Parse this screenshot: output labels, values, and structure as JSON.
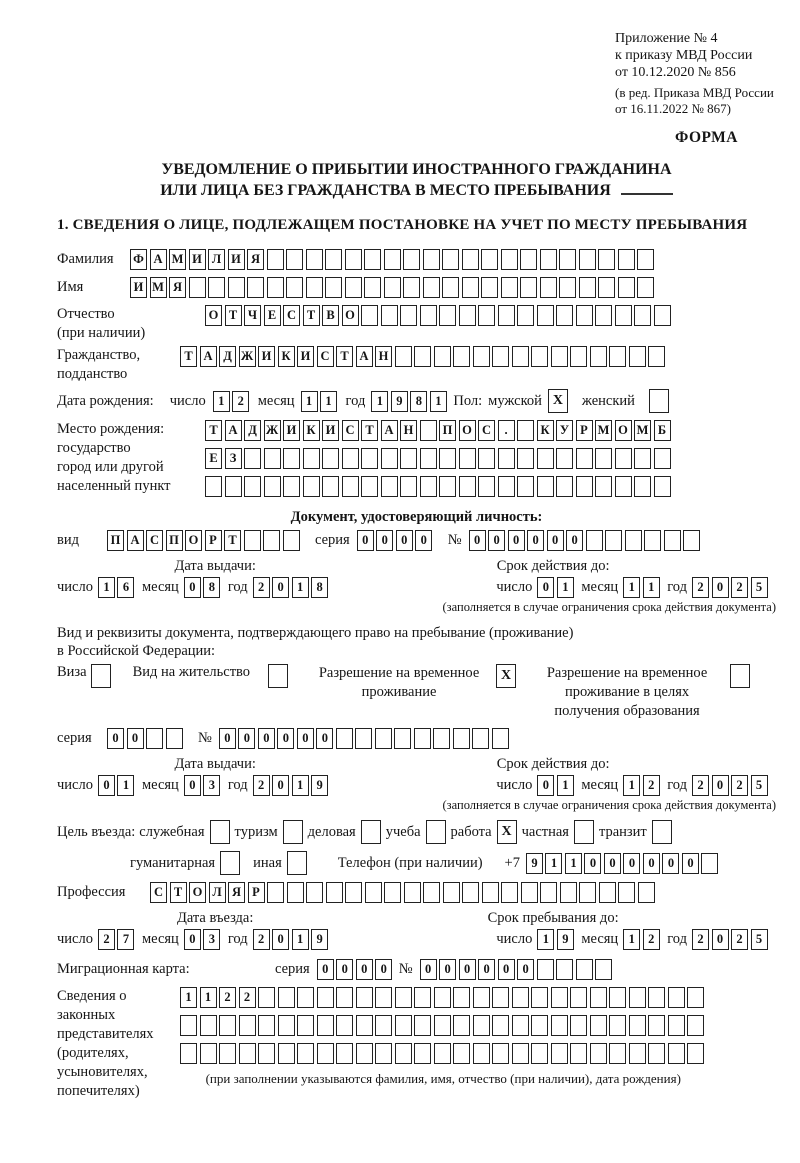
{
  "meta": {
    "appendix": [
      "Приложение № 4",
      "к приказу МВД России",
      "от 10.12.2020 № 856"
    ],
    "appendix2": [
      "(в ред. Приказа МВД России",
      "от 16.11.2022 № 867)"
    ],
    "forma": "ФОРМА"
  },
  "title": {
    "line1": "УВЕДОМЛЕНИЕ О ПРИБЫТИИ ИНОСТРАННОГО ГРАЖДАНИНА",
    "line2": "ИЛИ ЛИЦА БЕЗ ГРАЖДАНСТВА В МЕСТО ПРЕБЫВАНИЯ"
  },
  "section1": "1. СВЕДЕНИЯ О ЛИЦЕ, ПОДЛЕЖАЩЕМ ПОСТАНОВКЕ НА УЧЕТ ПО МЕСТУ ПРЕБЫВАНИЯ",
  "labels": {
    "day": "число",
    "month": "месяц",
    "year": "год",
    "seria": "серия",
    "num": "№"
  },
  "fields": {
    "surname": {
      "label": "Фамилия",
      "cells": {
        "value": "ФАМИЛИЯ",
        "count": 27
      }
    },
    "name": {
      "label": "Имя",
      "cells": {
        "value": "ИМЯ",
        "count": 27
      }
    },
    "patronymic": {
      "label1": "Отчество",
      "label2": "(при наличии)",
      "cells": {
        "value": "ОТЧЕСТВО",
        "count": 24
      }
    },
    "citizenship": {
      "label1": "Гражданство,",
      "label2": "подданство",
      "cells": {
        "value": "ТАДЖИКИСТАН",
        "count": 25
      }
    },
    "birth": {
      "label": "Дата рождения:",
      "day": {
        "value": "12",
        "count": 2
      },
      "month": {
        "value": "11",
        "count": 2
      },
      "year": {
        "value": "1981",
        "count": 4
      }
    },
    "gender": {
      "label": "Пол:",
      "male": "мужской",
      "male_checked": "X",
      "female": "женский",
      "female_checked": ""
    },
    "birthplace": {
      "label_lines": [
        "Место рождения:",
        "государство",
        "город или другой",
        "населенный пункт"
      ],
      "rows": [
        {
          "value": "ТАДЖИКИСТАН ПОС. КУРМОМБ",
          "count": 24
        },
        {
          "value": "ЕЗ",
          "count": 24
        },
        {
          "value": "",
          "count": 24
        }
      ]
    }
  },
  "identity_doc": {
    "header": "Документ, удостоверяющий личность:",
    "vid_label": "вид",
    "vid": {
      "value": "ПАСПОРТ",
      "count": 10
    },
    "seria": {
      "value": "0000",
      "count": 4
    },
    "number": {
      "value": "000000",
      "count": 12
    },
    "issue": {
      "head": "Дата выдачи:",
      "day": {
        "value": "16",
        "count": 2
      },
      "month": {
        "value": "08",
        "count": 2
      },
      "year": {
        "value": "2018",
        "count": 4
      }
    },
    "valid": {
      "head": "Срок действия до:",
      "day": {
        "value": "01",
        "count": 2
      },
      "month": {
        "value": "11",
        "count": 2
      },
      "year": {
        "value": "2025",
        "count": 4
      }
    },
    "note": "(заполняется в случае ограничения срока действия документа)"
  },
  "stay_doc": {
    "line1": "Вид и реквизиты документа, подтверждающего право на пребывание (проживание)",
    "line2": "в Российской Федерации:",
    "visa": "Виза",
    "visa_checked": "",
    "vnj": "Вид на жительство",
    "vnj_checked": "",
    "rvp": "Разрешение на временное проживание",
    "rvp_checked": "X",
    "rvp_edu": "Разрешение на временное проживание в целях получения образования",
    "rvp_edu_checked": "",
    "seria": {
      "value": "00",
      "count": 4
    },
    "number": {
      "value": "000000",
      "count": 15
    },
    "issue": {
      "head": "Дата выдачи:",
      "day": {
        "value": "01",
        "count": 2
      },
      "month": {
        "value": "03",
        "count": 2
      },
      "year": {
        "value": "2019",
        "count": 4
      }
    },
    "valid": {
      "head": "Срок действия до:",
      "day": {
        "value": "01",
        "count": 2
      },
      "month": {
        "value": "12",
        "count": 2
      },
      "year": {
        "value": "2025",
        "count": 4
      }
    },
    "note": "(заполняется в случае ограничения срока действия документа)"
  },
  "purpose": {
    "label": "Цель въезда:",
    "opts": [
      {
        "t": "служебная",
        "v": ""
      },
      {
        "t": "туризм",
        "v": ""
      },
      {
        "t": "деловая",
        "v": ""
      },
      {
        "t": "учеба",
        "v": ""
      },
      {
        "t": "работа",
        "v": "X"
      },
      {
        "t": "частная",
        "v": ""
      },
      {
        "t": "транзит",
        "v": ""
      }
    ],
    "opts2": [
      {
        "t": "гуманитарная",
        "v": ""
      },
      {
        "t": "иная",
        "v": ""
      }
    ]
  },
  "phone": {
    "label": "Телефон (при наличии)",
    "prefix": "+7",
    "cells": {
      "value": "911000000",
      "count": 10
    }
  },
  "profession": {
    "label": "Профессия",
    "cells": {
      "value": "СТОЛЯР",
      "count": 26
    }
  },
  "entry": {
    "arrive": {
      "head": "Дата въезда:",
      "day": {
        "value": "27",
        "count": 2
      },
      "month": {
        "value": "03",
        "count": 2
      },
      "year": {
        "value": "2019",
        "count": 4
      }
    },
    "until": {
      "head": "Срок пребывания до:",
      "day": {
        "value": "19",
        "count": 2
      },
      "month": {
        "value": "12",
        "count": 2
      },
      "year": {
        "value": "2025",
        "count": 4
      }
    }
  },
  "migration": {
    "label": "Миграционная карта:",
    "seria": {
      "value": "0000",
      "count": 4
    },
    "number": {
      "value": "000000",
      "count": 10
    }
  },
  "guardians": {
    "label_lines": [
      "Сведения о",
      "законных",
      "представителях",
      "(родителях,",
      "усыновителях,",
      "попечителях)"
    ],
    "rows": [
      {
        "value": "1122",
        "count": 27
      },
      {
        "value": "",
        "count": 27
      },
      {
        "value": "",
        "count": 27
      }
    ],
    "note": "(при заполнении указываются фамилия, имя, отчество (при наличии), дата рождения)"
  }
}
